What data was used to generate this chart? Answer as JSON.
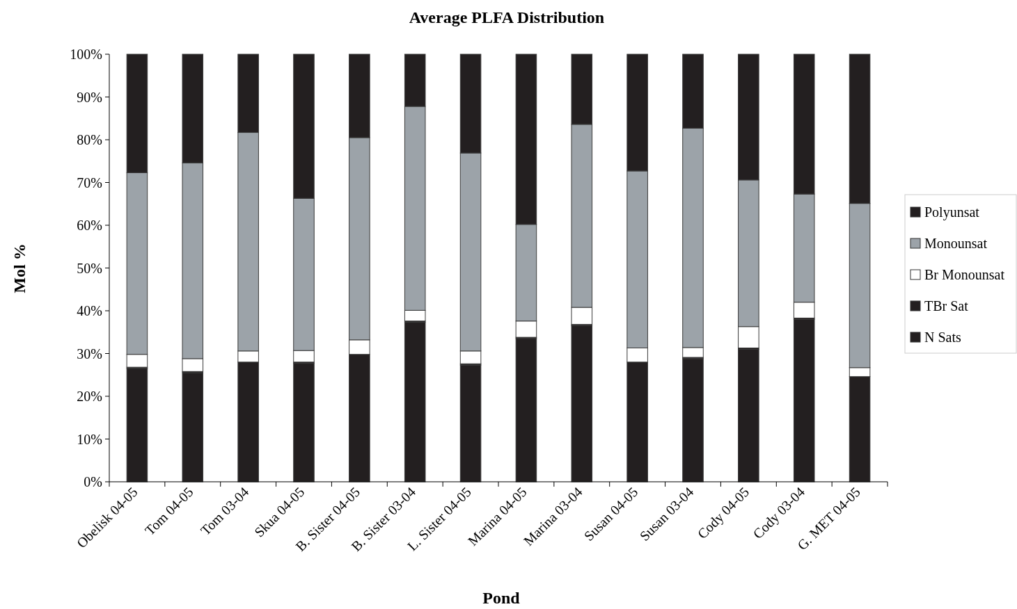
{
  "chart_data": {
    "type": "bar",
    "stacked": true,
    "title": "Average PLFA Distribution",
    "xlabel": "Pond",
    "ylabel": "Mol %",
    "categories": [
      "Obelisk 04-05",
      "Tom 04-05",
      "Tom 03-04",
      "Skua 04-05",
      "B. Sister 04-05",
      "B. Sister 03-04",
      "L. Sister 04-05",
      "Marina 04-05",
      "Marina 03-04",
      "Susan 04-05",
      "Susan 03-04",
      "Cody 04-05",
      "Cody 03-04",
      "G. MET 04-05"
    ],
    "series": [
      {
        "name": "N Sats",
        "color": "#231f20",
        "values": [
          26.5,
          25.5,
          28,
          27.7,
          29.8,
          37.3,
          27.3,
          33.5,
          36.5,
          28,
          28.8,
          31,
          38,
          24.6
        ]
      },
      {
        "name": "TBr Sat",
        "color": "#231f20",
        "values": [
          0.3,
          0.3,
          null,
          0.3,
          null,
          0.3,
          0.3,
          0.3,
          0.3,
          null,
          0.3,
          0.3,
          0.3,
          null
        ]
      },
      {
        "name": "Br Monounsat",
        "color": "#ffffff",
        "values": [
          3.0,
          3.0,
          2.6,
          2.7,
          3.4,
          2.5,
          3.0,
          3.8,
          4.0,
          3.3,
          2.3,
          5.0,
          3.7,
          2.1
        ]
      },
      {
        "name": "Monounsat",
        "color": "#9ca3a9",
        "values": [
          42.5,
          45.8,
          51.1,
          35.6,
          47.3,
          47.7,
          46.3,
          22.6,
          42.8,
          41.4,
          51.3,
          34.3,
          25.3,
          38.4
        ]
      },
      {
        "name": "Polyunsat",
        "color": "#231f20",
        "values": [
          27.7,
          25.4,
          18.3,
          33.7,
          19.5,
          12.2,
          23.1,
          39.8,
          16.4,
          27.3,
          17.3,
          29.4,
          32.7,
          34.9
        ]
      }
    ],
    "ylim": [
      0,
      100
    ],
    "yticks": [
      {
        "value": 0,
        "label": "0%"
      },
      {
        "value": 10,
        "label": "10%"
      },
      {
        "value": 20,
        "label": "20%"
      },
      {
        "value": 30,
        "label": "30%"
      },
      {
        "value": 40,
        "label": "40%"
      },
      {
        "value": 50,
        "label": "50%"
      },
      {
        "value": 60,
        "label": "60%"
      },
      {
        "value": 70,
        "label": "70%"
      },
      {
        "value": 80,
        "label": "80%"
      },
      {
        "value": 90,
        "label": "90%"
      },
      {
        "value": 100,
        "label": "100%"
      }
    ],
    "grid": false,
    "legend": "right"
  }
}
